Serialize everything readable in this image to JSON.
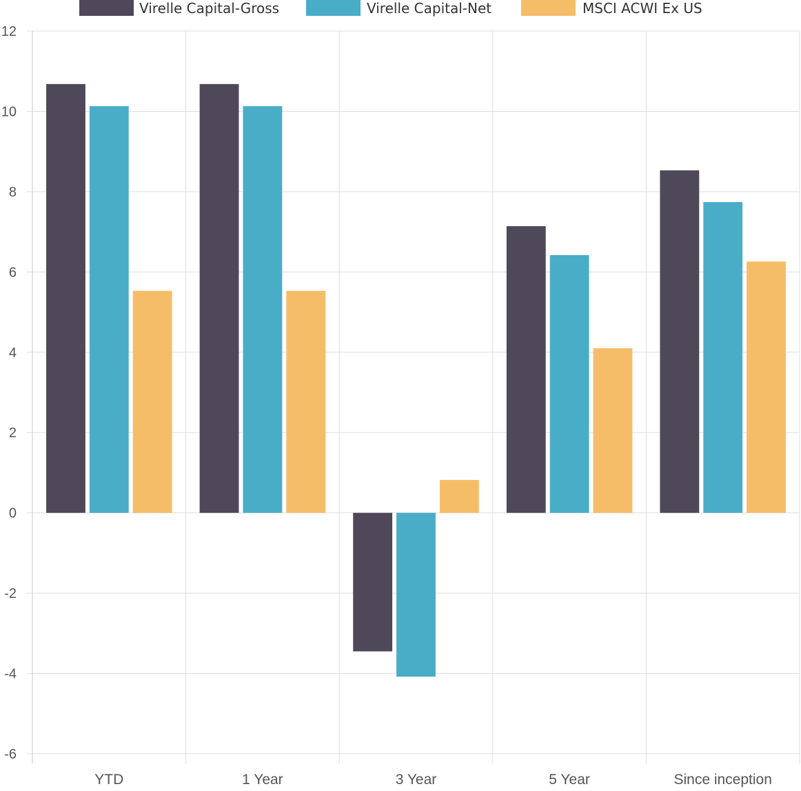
{
  "chart_data": {
    "type": "bar",
    "title": "",
    "xlabel": "",
    "ylabel": "",
    "categories": [
      "YTD",
      "1 Year",
      "3 Year",
      "5 Year",
      "Since inception"
    ],
    "ylim": [
      -6,
      12
    ],
    "yticks": [
      -6,
      -4,
      -2,
      0,
      2,
      4,
      6,
      8,
      10,
      12
    ],
    "grid": true,
    "legend": "top-center",
    "series": [
      {
        "name": "Virelle Capital-Gross",
        "color": "#4f4859",
        "values": [
          10.68,
          10.68,
          -3.45,
          7.14,
          8.53
        ]
      },
      {
        "name": "Virelle Capital-Net",
        "color": "#4aadc8",
        "values": [
          10.13,
          10.13,
          -4.08,
          6.42,
          7.74
        ]
      },
      {
        "name": "MSCI ACWI Ex US",
        "color": "#f6bd68",
        "values": [
          5.53,
          5.53,
          0.82,
          4.1,
          6.26
        ]
      }
    ]
  }
}
